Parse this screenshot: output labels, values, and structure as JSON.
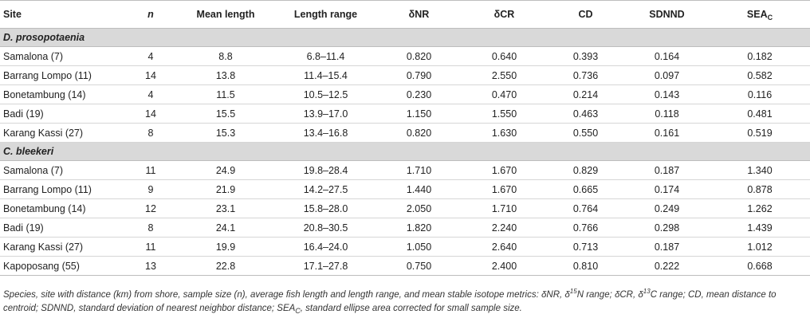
{
  "header": {
    "site": "Site",
    "n": "n",
    "mean_length": "Mean length",
    "length_range": "Length range",
    "dnr": "δNR",
    "dcr": "δCR",
    "cd": "CD",
    "sdnnd": "SDNND",
    "sea": "SEA",
    "sea_sub": "C"
  },
  "groups": [
    {
      "name": "D. prosopotaenia",
      "rows": [
        {
          "site": "Samalona (7)",
          "n": "4",
          "mean": "8.8",
          "range": "6.8–11.4",
          "dnr": "0.820",
          "dcr": "0.640",
          "cd": "0.393",
          "sdnnd": "0.164",
          "sea": "0.182"
        },
        {
          "site": "Barrang Lompo (11)",
          "n": "14",
          "mean": "13.8",
          "range": "11.4–15.4",
          "dnr": "0.790",
          "dcr": "2.550",
          "cd": "0.736",
          "sdnnd": "0.097",
          "sea": "0.582"
        },
        {
          "site": "Bonetambung (14)",
          "n": "4",
          "mean": "11.5",
          "range": "10.5–12.5",
          "dnr": "0.230",
          "dcr": "0.470",
          "cd": "0.214",
          "sdnnd": "0.143",
          "sea": "0.116"
        },
        {
          "site": "Badi (19)",
          "n": "14",
          "mean": "15.5",
          "range": "13.9–17.0",
          "dnr": "1.150",
          "dcr": "1.550",
          "cd": "0.463",
          "sdnnd": "0.118",
          "sea": "0.481"
        },
        {
          "site": "Karang Kassi (27)",
          "n": "8",
          "mean": "15.3",
          "range": "13.4–16.8",
          "dnr": "0.820",
          "dcr": "1.630",
          "cd": "0.550",
          "sdnnd": "0.161",
          "sea": "0.519"
        }
      ]
    },
    {
      "name": "C. bleekeri",
      "rows": [
        {
          "site": "Samalona (7)",
          "n": "11",
          "mean": "24.9",
          "range": "19.8–28.4",
          "dnr": "1.710",
          "dcr": "1.670",
          "cd": "0.829",
          "sdnnd": "0.187",
          "sea": "1.340"
        },
        {
          "site": "Barrang Lompo (11)",
          "n": "9",
          "mean": "21.9",
          "range": "14.2–27.5",
          "dnr": "1.440",
          "dcr": "1.670",
          "cd": "0.665",
          "sdnnd": "0.174",
          "sea": "0.878"
        },
        {
          "site": "Bonetambung (14)",
          "n": "12",
          "mean": "23.1",
          "range": "15.8–28.0",
          "dnr": "2.050",
          "dcr": "1.710",
          "cd": "0.764",
          "sdnnd": "0.249",
          "sea": "1.262"
        },
        {
          "site": "Badi (19)",
          "n": "8",
          "mean": "24.1",
          "range": "20.8–30.5",
          "dnr": "1.820",
          "dcr": "2.240",
          "cd": "0.766",
          "sdnnd": "0.298",
          "sea": "1.439"
        },
        {
          "site": "Karang Kassi (27)",
          "n": "11",
          "mean": "19.9",
          "range": "16.4–24.0",
          "dnr": "1.050",
          "dcr": "2.640",
          "cd": "0.713",
          "sdnnd": "0.187",
          "sea": "1.012"
        },
        {
          "site": "Kapoposang (55)",
          "n": "13",
          "mean": "22.8",
          "range": "17.1–27.8",
          "dnr": "0.750",
          "dcr": "2.400",
          "cd": "0.810",
          "sdnnd": "0.222",
          "sea": "0.668"
        }
      ]
    }
  ],
  "footnote": {
    "p1": "Species, site with distance (km) from shore, sample size (n), average fish length and length range, and mean stable isotope metrics: δNR, δ",
    "sup1": "15",
    "p2": "N range; δCR, δ",
    "sup2": "13",
    "p3": "C range; CD, mean distance to centroid; SDNND, standard deviation of nearest neighbor distance; SEA",
    "sub1": "C",
    "p4": ", standard ellipse area corrected for small sample size."
  }
}
